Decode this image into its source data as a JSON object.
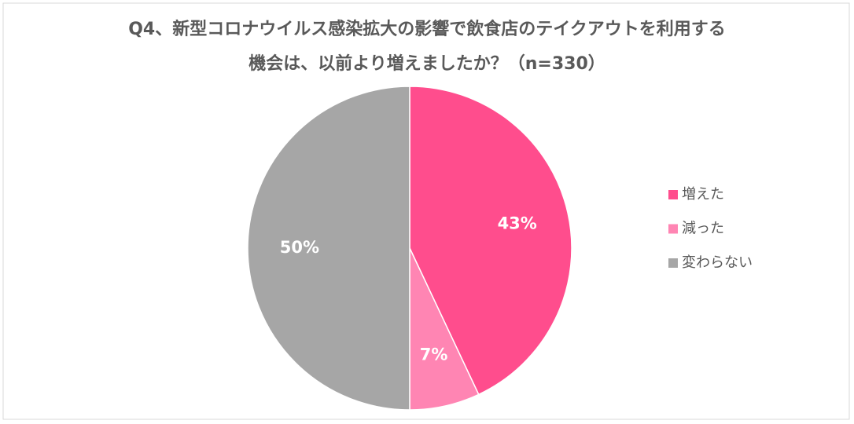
{
  "chart_data": {
    "type": "pie",
    "title": [
      "Q4、新型コロナウイルス感染拡大の影響で飲食店のテイクアウトを利用する",
      "機会は、以前より増えましたか？（n=330）"
    ],
    "categories": [
      "増えた",
      "減った",
      "変わらない"
    ],
    "values": [
      43,
      7,
      50
    ],
    "value_labels": [
      "43%",
      "7%",
      "50%"
    ],
    "colors": [
      "#ff4d8d",
      "#ff85b3",
      "#a6a6a6"
    ],
    "legend": "right"
  }
}
